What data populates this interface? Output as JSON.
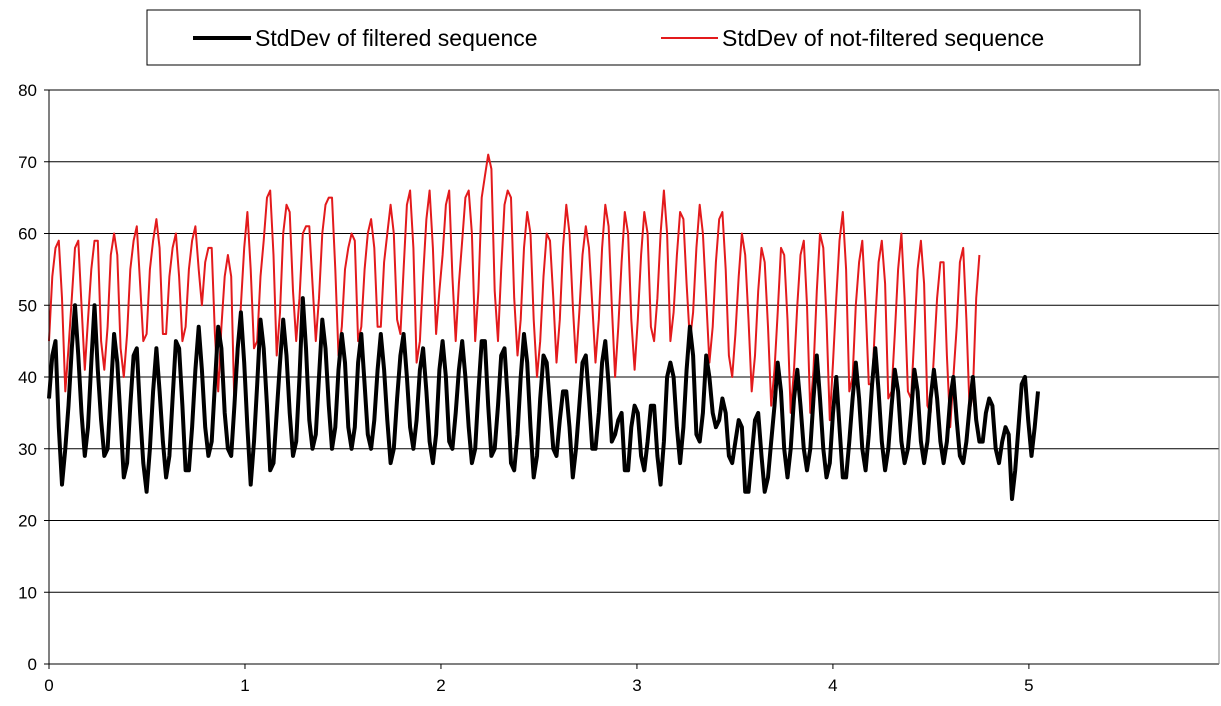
{
  "chart_data": {
    "type": "line",
    "title": "",
    "xlabel": "",
    "ylabel": "",
    "xlim": [
      0,
      5.97
    ],
    "ylim": [
      0,
      80
    ],
    "x_ticks": [
      "0",
      "1",
      "2",
      "3",
      "4",
      "5"
    ],
    "y_ticks": [
      "0",
      "10",
      "20",
      "30",
      "40",
      "50",
      "60",
      "70",
      "80"
    ],
    "grid": "horizontal",
    "legend_position": "top",
    "series": [
      {
        "name": "StdDev of filtered sequence",
        "color": "#000000",
        "x_start": 0,
        "x_step": 0.0166,
        "values": [
          37,
          43,
          45,
          33,
          25,
          30,
          36,
          44,
          50,
          43,
          35,
          29,
          33,
          42,
          50,
          41,
          34,
          29,
          30,
          38,
          46,
          42,
          34,
          26,
          28,
          36,
          43,
          44,
          35,
          28,
          24,
          30,
          38,
          44,
          38,
          31,
          26,
          29,
          37,
          45,
          44,
          36,
          27,
          27,
          33,
          41,
          47,
          41,
          33,
          29,
          31,
          39,
          47,
          44,
          35,
          30,
          29,
          36,
          44,
          49,
          42,
          33,
          25,
          31,
          39,
          48,
          44,
          36,
          27,
          28,
          35,
          42,
          48,
          43,
          35,
          29,
          31,
          40,
          51,
          44,
          34,
          30,
          32,
          40,
          48,
          44,
          36,
          30,
          33,
          41,
          46,
          42,
          33,
          30,
          33,
          42,
          46,
          39,
          32,
          30,
          34,
          41,
          46,
          41,
          34,
          28,
          30,
          37,
          43,
          46,
          40,
          33,
          30,
          34,
          41,
          44,
          38,
          31,
          28,
          32,
          41,
          45,
          40,
          31,
          30,
          35,
          41,
          45,
          40,
          33,
          28,
          30,
          38,
          45,
          45,
          36,
          29,
          30,
          36,
          43,
          44,
          37,
          28,
          27,
          32,
          40,
          46,
          42,
          33,
          26,
          29,
          37,
          43,
          42,
          36,
          30,
          29,
          34,
          38,
          38,
          33,
          26,
          30,
          36,
          42,
          43,
          37,
          30,
          30,
          35,
          42,
          45,
          39,
          31,
          32,
          34,
          35,
          27,
          27,
          33,
          36,
          35,
          29,
          27,
          31,
          36,
          36,
          29,
          25,
          31,
          40,
          42,
          40,
          33,
          28,
          33,
          41,
          47,
          43,
          32,
          31,
          35,
          43,
          40,
          35,
          33,
          34,
          37,
          35,
          29,
          28,
          31,
          34,
          33,
          24,
          24,
          29,
          34,
          35,
          29,
          24,
          26,
          31,
          36,
          42,
          38,
          30,
          26,
          30,
          37,
          41,
          36,
          30,
          27,
          30,
          37,
          43,
          37,
          30,
          26,
          28,
          35,
          40,
          33,
          26,
          26,
          31,
          37,
          42,
          37,
          30,
          27,
          32,
          39,
          44,
          38,
          31,
          27,
          30,
          36,
          41,
          38,
          31,
          28,
          30,
          35,
          41,
          38,
          31,
          28,
          31,
          37,
          41,
          37,
          31,
          28,
          31,
          37,
          40,
          34,
          29,
          28,
          31,
          36,
          40,
          34,
          31,
          31,
          35,
          37,
          36,
          30,
          28,
          31,
          33,
          32,
          23,
          27,
          33,
          39,
          40,
          34,
          29,
          33,
          38
        ]
      },
      {
        "name": "StdDev of  not-filtered sequence",
        "color": "#e31a1c",
        "x_start": 0,
        "x_step": 0.0166,
        "values": [
          45,
          54,
          58,
          59,
          51,
          38,
          44,
          51,
          58,
          59,
          50,
          41,
          48,
          55,
          59,
          59,
          45,
          41,
          47,
          57,
          60,
          57,
          44,
          40,
          46,
          55,
          59,
          61,
          53,
          45,
          46,
          55,
          59,
          62,
          58,
          46,
          46,
          54,
          58,
          60,
          54,
          45,
          47,
          55,
          59,
          61,
          55,
          50,
          56,
          58,
          58,
          46,
          38,
          47,
          54,
          57,
          54,
          36,
          42,
          50,
          58,
          63,
          55,
          44,
          45,
          54,
          59,
          65,
          66,
          57,
          43,
          49,
          60,
          64,
          63,
          52,
          45,
          51,
          60,
          61,
          61,
          53,
          45,
          51,
          60,
          64,
          65,
          65,
          55,
          43,
          47,
          55,
          58,
          60,
          59,
          45,
          47,
          55,
          60,
          62,
          58,
          47,
          47,
          56,
          60,
          64,
          60,
          48,
          46,
          55,
          64,
          66,
          58,
          42,
          45,
          54,
          62,
          66,
          58,
          46,
          52,
          57,
          64,
          66,
          54,
          45,
          53,
          59,
          65,
          66,
          60,
          45,
          52,
          65,
          68,
          71,
          69,
          52,
          45,
          55,
          64,
          66,
          65,
          51,
          43,
          48,
          58,
          63,
          60,
          48,
          40,
          45,
          54,
          60,
          59,
          51,
          42,
          48,
          58,
          64,
          60,
          50,
          42,
          49,
          57,
          61,
          58,
          50,
          42,
          48,
          58,
          64,
          61,
          50,
          40,
          47,
          56,
          63,
          60,
          48,
          41,
          48,
          57,
          63,
          60,
          47,
          45,
          51,
          60,
          66,
          60,
          45,
          49,
          57,
          63,
          62,
          53,
          45,
          49,
          58,
          64,
          60,
          51,
          42,
          47,
          56,
          62,
          63,
          55,
          43,
          40,
          46,
          54,
          60,
          57,
          48,
          38,
          43,
          52,
          58,
          56,
          47,
          36,
          41,
          49,
          58,
          57,
          48,
          35,
          41,
          50,
          57,
          59,
          50,
          35,
          41,
          52,
          60,
          58,
          48,
          34,
          42,
          51,
          59,
          63,
          55,
          38,
          40,
          50,
          56,
          59,
          50,
          39,
          39,
          48,
          56,
          59,
          53,
          37,
          38,
          46,
          55,
          60,
          51,
          38,
          37,
          46,
          55,
          59,
          53,
          36,
          35,
          43,
          51,
          56,
          56,
          43,
          33,
          40,
          47,
          56,
          58,
          48,
          35,
          38,
          51,
          57
        ]
      }
    ]
  }
}
